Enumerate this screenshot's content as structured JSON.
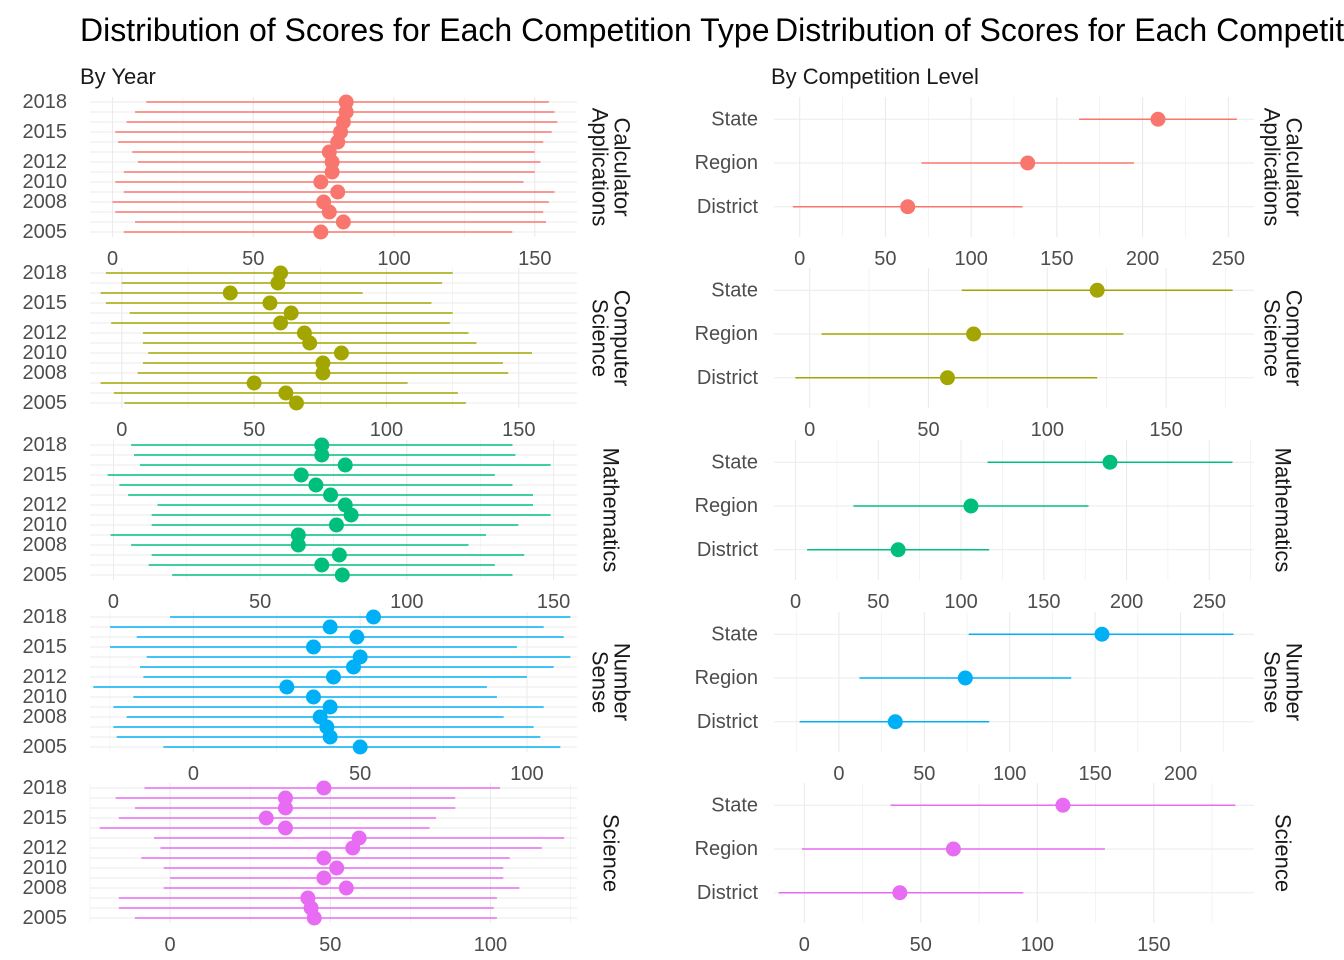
{
  "panels": [
    {
      "title": "Distribution of Scores for Each Competition Type",
      "subtitle": "By Year"
    },
    {
      "title": "Distribution of Scores for Each Competition Type",
      "subtitle": "By Competition Level"
    }
  ],
  "chart_data": [
    {
      "type": "scatter",
      "title": "Distribution of Scores for Each Competition Type",
      "subtitle": "By Year",
      "geom": "pointrange",
      "y_tick_labels": [
        "2005",
        "2008",
        "2010",
        "2012",
        "2015",
        "2018"
      ],
      "grid": true,
      "facets": [
        {
          "name": "Calculator Applications",
          "color": "#F8766D",
          "xlim": [
            -8,
            165
          ],
          "xticks": [
            0,
            50,
            100,
            150
          ],
          "rows": [
            {
              "year": 2005,
              "mean": 74,
              "low": 4,
              "high": 142
            },
            {
              "year": 2006,
              "mean": 82,
              "low": 8,
              "high": 154
            },
            {
              "year": 2007,
              "mean": 77,
              "low": 1,
              "high": 153
            },
            {
              "year": 2008,
              "mean": 75,
              "low": 0,
              "high": 155
            },
            {
              "year": 2009,
              "mean": 80,
              "low": 4,
              "high": 157
            },
            {
              "year": 2010,
              "mean": 74,
              "low": 1,
              "high": 146
            },
            {
              "year": 2011,
              "mean": 78,
              "low": 4,
              "high": 150
            },
            {
              "year": 2012,
              "mean": 78,
              "low": 9,
              "high": 152
            },
            {
              "year": 2013,
              "mean": 77,
              "low": 7,
              "high": 150
            },
            {
              "year": 2014,
              "mean": 80,
              "low": 2,
              "high": 153
            },
            {
              "year": 2015,
              "mean": 81,
              "low": 1,
              "high": 156
            },
            {
              "year": 2016,
              "mean": 82,
              "low": 5,
              "high": 158
            },
            {
              "year": 2017,
              "mean": 83,
              "low": 8,
              "high": 157
            },
            {
              "year": 2018,
              "mean": 83,
              "low": 12,
              "high": 155
            }
          ]
        },
        {
          "name": "Computer Science",
          "color": "#A3A500",
          "xlim": [
            -12,
            172
          ],
          "xticks": [
            0,
            50,
            100,
            150
          ],
          "rows": [
            {
              "year": 2005,
              "mean": 66,
              "low": 1,
              "high": 130
            },
            {
              "year": 2006,
              "mean": 62,
              "low": -3,
              "high": 127
            },
            {
              "year": 2007,
              "mean": 50,
              "low": -8,
              "high": 108
            },
            {
              "year": 2008,
              "mean": 76,
              "low": 6,
              "high": 146
            },
            {
              "year": 2009,
              "mean": 76,
              "low": 8,
              "high": 144
            },
            {
              "year": 2010,
              "mean": 83,
              "low": 10,
              "high": 155
            },
            {
              "year": 2011,
              "mean": 71,
              "low": 8,
              "high": 134
            },
            {
              "year": 2012,
              "mean": 69,
              "low": 8,
              "high": 131
            },
            {
              "year": 2013,
              "mean": 60,
              "low": -4,
              "high": 124
            },
            {
              "year": 2014,
              "mean": 64,
              "low": 3,
              "high": 125
            },
            {
              "year": 2015,
              "mean": 56,
              "low": -6,
              "high": 117
            },
            {
              "year": 2016,
              "mean": 41,
              "low": -8,
              "high": 91
            },
            {
              "year": 2017,
              "mean": 59,
              "low": 0,
              "high": 121
            },
            {
              "year": 2018,
              "mean": 60,
              "low": -6,
              "high": 125
            }
          ]
        },
        {
          "name": "Mathematics",
          "color": "#00BF7D",
          "xlim": [
            -8,
            158
          ],
          "xticks": [
            0,
            50,
            100,
            150
          ],
          "rows": [
            {
              "year": 2005,
              "mean": 78,
              "low": 20,
              "high": 136
            },
            {
              "year": 2006,
              "mean": 71,
              "low": 12,
              "high": 130
            },
            {
              "year": 2007,
              "mean": 77,
              "low": 13,
              "high": 140
            },
            {
              "year": 2008,
              "mean": 63,
              "low": 6,
              "high": 121
            },
            {
              "year": 2009,
              "mean": 63,
              "low": -1,
              "high": 127
            },
            {
              "year": 2010,
              "mean": 76,
              "low": 13,
              "high": 138
            },
            {
              "year": 2011,
              "mean": 81,
              "low": 13,
              "high": 149
            },
            {
              "year": 2012,
              "mean": 79,
              "low": 15,
              "high": 143
            },
            {
              "year": 2013,
              "mean": 74,
              "low": 5,
              "high": 143
            },
            {
              "year": 2014,
              "mean": 69,
              "low": 2,
              "high": 136
            },
            {
              "year": 2015,
              "mean": 64,
              "low": -2,
              "high": 130
            },
            {
              "year": 2016,
              "mean": 79,
              "low": 9,
              "high": 149
            },
            {
              "year": 2017,
              "mean": 71,
              "low": 7,
              "high": 137
            },
            {
              "year": 2018,
              "mean": 71,
              "low": 6,
              "high": 136
            }
          ]
        },
        {
          "name": "Number Sense",
          "color": "#00B0F6",
          "xlim": [
            -31,
            115
          ],
          "xticks": [
            0,
            50,
            100
          ],
          "rows": [
            {
              "year": 2005,
              "mean": 50,
              "low": -9,
              "high": 110
            },
            {
              "year": 2006,
              "mean": 41,
              "low": -23,
              "high": 104
            },
            {
              "year": 2007,
              "mean": 40,
              "low": -24,
              "high": 102
            },
            {
              "year": 2008,
              "mean": 38,
              "low": -20,
              "high": 93
            },
            {
              "year": 2009,
              "mean": 41,
              "low": -24,
              "high": 105
            },
            {
              "year": 2010,
              "mean": 36,
              "low": -18,
              "high": 91
            },
            {
              "year": 2011,
              "mean": 28,
              "low": -30,
              "high": 88
            },
            {
              "year": 2012,
              "mean": 42,
              "low": -15,
              "high": 100
            },
            {
              "year": 2013,
              "mean": 48,
              "low": -16,
              "high": 108
            },
            {
              "year": 2014,
              "mean": 50,
              "low": -14,
              "high": 113
            },
            {
              "year": 2015,
              "mean": 36,
              "low": -25,
              "high": 97
            },
            {
              "year": 2016,
              "mean": 49,
              "low": -17,
              "high": 111
            },
            {
              "year": 2017,
              "mean": 41,
              "low": -25,
              "high": 105
            },
            {
              "year": 2018,
              "mean": 54,
              "low": -7,
              "high": 113
            }
          ]
        },
        {
          "name": "Science",
          "color": "#E76BF3",
          "xlim": [
            -25,
            127
          ],
          "xticks": [
            0,
            50,
            100
          ],
          "rows": [
            {
              "year": 2005,
              "mean": 45,
              "low": -11,
              "high": 102
            },
            {
              "year": 2006,
              "mean": 44,
              "low": -16,
              "high": 101
            },
            {
              "year": 2007,
              "mean": 43,
              "low": -16,
              "high": 102
            },
            {
              "year": 2008,
              "mean": 55,
              "low": -2,
              "high": 109
            },
            {
              "year": 2009,
              "mean": 48,
              "low": 0,
              "high": 104
            },
            {
              "year": 2010,
              "mean": 52,
              "low": -2,
              "high": 104
            },
            {
              "year": 2011,
              "mean": 48,
              "low": -9,
              "high": 106
            },
            {
              "year": 2012,
              "mean": 57,
              "low": -3,
              "high": 116
            },
            {
              "year": 2013,
              "mean": 59,
              "low": -5,
              "high": 123
            },
            {
              "year": 2014,
              "mean": 36,
              "low": -22,
              "high": 81
            },
            {
              "year": 2015,
              "mean": 30,
              "low": -16,
              "high": 83
            },
            {
              "year": 2016,
              "mean": 36,
              "low": -11,
              "high": 89
            },
            {
              "year": 2017,
              "mean": 36,
              "low": -17,
              "high": 89
            },
            {
              "year": 2018,
              "mean": 48,
              "low": -8,
              "high": 103
            }
          ]
        }
      ]
    },
    {
      "type": "scatter",
      "title": "Distribution of Scores for Each Competition Type",
      "subtitle": "By Competition Level",
      "geom": "pointrange",
      "categories": [
        "District",
        "Region",
        "State"
      ],
      "grid": true,
      "facets": [
        {
          "name": "Calculator Applications",
          "color": "#F8766D",
          "xlim": [
            -15,
            265
          ],
          "xticks": [
            0,
            50,
            100,
            150,
            200,
            250
          ],
          "rows": [
            {
              "level": "District",
              "mean": 63,
              "low": -4,
              "high": 130
            },
            {
              "level": "Region",
              "mean": 133,
              "low": 71,
              "high": 195
            },
            {
              "level": "State",
              "mean": 209,
              "low": 163,
              "high": 255
            }
          ]
        },
        {
          "name": "Computer Science",
          "color": "#A3A500",
          "xlim": [
            -15,
            187
          ],
          "xticks": [
            0,
            50,
            100,
            150
          ],
          "rows": [
            {
              "level": "District",
              "mean": 58,
              "low": -6,
              "high": 121
            },
            {
              "level": "Region",
              "mean": 69,
              "low": 5,
              "high": 132
            },
            {
              "level": "State",
              "mean": 121,
              "low": 64,
              "high": 178
            }
          ]
        },
        {
          "name": "Mathematics",
          "color": "#00BF7D",
          "xlim": [
            -13,
            277
          ],
          "xticks": [
            0,
            50,
            100,
            150,
            200,
            250
          ],
          "rows": [
            {
              "level": "District",
              "mean": 62,
              "low": 7,
              "high": 117
            },
            {
              "level": "Region",
              "mean": 106,
              "low": 35,
              "high": 177
            },
            {
              "level": "State",
              "mean": 190,
              "low": 116,
              "high": 264
            }
          ]
        },
        {
          "name": "Number Sense",
          "color": "#00B0F6",
          "xlim": [
            -38,
            243
          ],
          "xticks": [
            0,
            50,
            100,
            150,
            200
          ],
          "rows": [
            {
              "level": "District",
              "mean": 33,
              "low": -23,
              "high": 88
            },
            {
              "level": "Region",
              "mean": 74,
              "low": 12,
              "high": 136
            },
            {
              "level": "State",
              "mean": 154,
              "low": 76,
              "high": 231
            }
          ]
        },
        {
          "name": "Science",
          "color": "#E76BF3",
          "xlim": [
            -13,
            193
          ],
          "xticks": [
            0,
            50,
            100,
            150
          ],
          "rows": [
            {
              "level": "District",
              "mean": 41,
              "low": -11,
              "high": 94
            },
            {
              "level": "Region",
              "mean": 64,
              "low": -1,
              "high": 129
            },
            {
              "level": "State",
              "mean": 111,
              "low": 37,
              "high": 185
            }
          ]
        }
      ]
    }
  ]
}
